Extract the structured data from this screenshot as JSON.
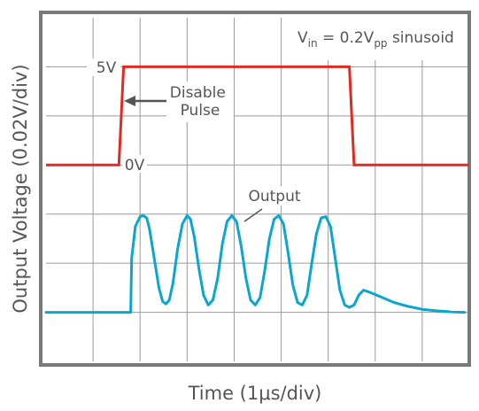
{
  "chart_data": {
    "type": "line",
    "title": "",
    "xlabel": "Time (1μs/div)",
    "ylabel": "Output Voltage (0.02V/div)",
    "grid": true,
    "xlim": [
      0,
      9
    ],
    "ylim": [
      0,
      7
    ],
    "note": "V_in = 0.2V_pp sinusoid",
    "series": [
      {
        "name": "Disable Pulse",
        "color": "#e02b22",
        "label_low": "0V",
        "label_high": "5V",
        "points": [
          [
            0,
            4.0
          ],
          [
            1.55,
            4.0
          ],
          [
            1.65,
            6.0
          ],
          [
            6.45,
            6.0
          ],
          [
            6.55,
            4.0
          ],
          [
            9,
            4.0
          ]
        ]
      },
      {
        "name": "Output",
        "color": "#0aa6cf",
        "points": [
          [
            0,
            1.0
          ],
          [
            1.8,
            1.0
          ],
          [
            1.82,
            2.1
          ],
          [
            1.9,
            2.75
          ],
          [
            2.0,
            2.95
          ],
          [
            2.07,
            2.97
          ],
          [
            2.14,
            2.92
          ],
          [
            2.2,
            2.7
          ],
          [
            2.3,
            2.1
          ],
          [
            2.4,
            1.5
          ],
          [
            2.48,
            1.22
          ],
          [
            2.55,
            1.17
          ],
          [
            2.62,
            1.25
          ],
          [
            2.7,
            1.6
          ],
          [
            2.8,
            2.3
          ],
          [
            2.9,
            2.8
          ],
          [
            3.0,
            2.97
          ],
          [
            3.07,
            2.9
          ],
          [
            3.15,
            2.55
          ],
          [
            3.25,
            1.9
          ],
          [
            3.35,
            1.35
          ],
          [
            3.45,
            1.15
          ],
          [
            3.55,
            1.25
          ],
          [
            3.65,
            1.7
          ],
          [
            3.75,
            2.4
          ],
          [
            3.85,
            2.85
          ],
          [
            3.95,
            2.97
          ],
          [
            4.05,
            2.85
          ],
          [
            4.15,
            2.35
          ],
          [
            4.25,
            1.7
          ],
          [
            4.35,
            1.25
          ],
          [
            4.45,
            1.15
          ],
          [
            4.55,
            1.3
          ],
          [
            4.65,
            1.85
          ],
          [
            4.75,
            2.5
          ],
          [
            4.85,
            2.9
          ],
          [
            4.95,
            2.97
          ],
          [
            5.05,
            2.8
          ],
          [
            5.15,
            2.2
          ],
          [
            5.25,
            1.55
          ],
          [
            5.35,
            1.2
          ],
          [
            5.45,
            1.15
          ],
          [
            5.55,
            1.35
          ],
          [
            5.65,
            2.0
          ],
          [
            5.75,
            2.6
          ],
          [
            5.85,
            2.92
          ],
          [
            5.95,
            2.95
          ],
          [
            6.05,
            2.75
          ],
          [
            6.15,
            2.1
          ],
          [
            6.25,
            1.45
          ],
          [
            6.35,
            1.15
          ],
          [
            6.45,
            1.1
          ],
          [
            6.55,
            1.15
          ],
          [
            6.65,
            1.35
          ],
          [
            6.75,
            1.45
          ],
          [
            6.85,
            1.42
          ],
          [
            7.1,
            1.32
          ],
          [
            7.4,
            1.2
          ],
          [
            7.7,
            1.12
          ],
          [
            8.0,
            1.06
          ],
          [
            8.3,
            1.03
          ],
          [
            8.6,
            1.01
          ],
          [
            8.9,
            1.0
          ]
        ]
      }
    ],
    "annotations": {
      "disable_pulse": "Disable\nPulse",
      "output": "Output"
    }
  }
}
